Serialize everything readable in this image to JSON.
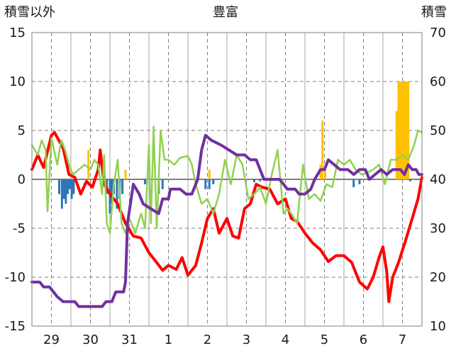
{
  "chart_data": {
    "type": "line",
    "title": "豊富",
    "ylabel_left": "積雪以外",
    "ylabel_right": "積雪",
    "x_tick_labels": [
      "29",
      "30",
      "31",
      "1",
      "2",
      "3",
      "4",
      "5",
      "6",
      "7"
    ],
    "x_range_days": [
      -0.5,
      9.5
    ],
    "ylim_left": [
      -15,
      15
    ],
    "yticks_left": [
      15,
      10,
      5,
      0,
      -5,
      -10,
      -15
    ],
    "ylim_right": [
      10,
      70
    ],
    "yticks_right": [
      70,
      60,
      50,
      40,
      30,
      20,
      10
    ],
    "grid": "dashed vertical and horizontal",
    "legend": "none",
    "colors": {
      "red_line": "#ff0000",
      "green_line": "#92d050",
      "purple_line": "#7030a0",
      "blue_bars": "#2e75b6",
      "orange_bars": "#ffc000",
      "zero_line": "#7f7f7f"
    },
    "series": [
      {
        "axis": "left",
        "style": "line",
        "color": "red",
        "points": [
          [
            -0.5,
            1.0
          ],
          [
            -0.35,
            2.5
          ],
          [
            -0.2,
            1.2
          ],
          [
            0.0,
            4.5
          ],
          [
            0.08,
            4.8
          ],
          [
            0.3,
            3.2
          ],
          [
            0.45,
            0.5
          ],
          [
            0.6,
            0.2
          ],
          [
            0.75,
            -1.5
          ],
          [
            0.9,
            -0.2
          ],
          [
            1.05,
            -0.8
          ],
          [
            1.2,
            1.0
          ],
          [
            1.25,
            3.0
          ],
          [
            1.35,
            -0.5
          ],
          [
            1.5,
            -1.5
          ],
          [
            1.7,
            -2.5
          ],
          [
            1.9,
            -4.5
          ],
          [
            2.1,
            -5.8
          ],
          [
            2.3,
            -6.0
          ],
          [
            2.5,
            -7.5
          ],
          [
            2.7,
            -8.5
          ],
          [
            2.85,
            -9.3
          ],
          [
            3.0,
            -8.8
          ],
          [
            3.2,
            -9.2
          ],
          [
            3.35,
            -8.0
          ],
          [
            3.5,
            -9.8
          ],
          [
            3.7,
            -8.8
          ],
          [
            3.85,
            -6.5
          ],
          [
            4.0,
            -4.0
          ],
          [
            4.15,
            -3.0
          ],
          [
            4.3,
            -5.5
          ],
          [
            4.5,
            -4.0
          ],
          [
            4.65,
            -5.8
          ],
          [
            4.8,
            -6.0
          ],
          [
            4.95,
            -3.0
          ],
          [
            5.1,
            -2.5
          ],
          [
            5.25,
            -0.5
          ],
          [
            5.4,
            -0.8
          ],
          [
            5.6,
            -1.0
          ],
          [
            5.8,
            -2.5
          ],
          [
            6.0,
            -2.0
          ],
          [
            6.15,
            -4.0
          ],
          [
            6.3,
            -4.3
          ],
          [
            6.5,
            -5.5
          ],
          [
            6.7,
            -6.5
          ],
          [
            6.9,
            -7.2
          ],
          [
            7.1,
            -8.4
          ],
          [
            7.3,
            -7.8
          ],
          [
            7.5,
            -7.8
          ],
          [
            7.7,
            -8.5
          ],
          [
            7.9,
            -10.5
          ],
          [
            8.1,
            -11.2
          ],
          [
            8.25,
            -10.0
          ],
          [
            8.4,
            -8.0
          ],
          [
            8.5,
            -6.9
          ],
          [
            8.6,
            -9.5
          ],
          [
            8.65,
            -12.5
          ],
          [
            8.75,
            -10.0
          ],
          [
            8.9,
            -8.5
          ],
          [
            9.1,
            -6.0
          ],
          [
            9.25,
            -4.0
          ],
          [
            9.4,
            -2.0
          ],
          [
            9.5,
            0.2
          ]
        ]
      },
      {
        "axis": "left",
        "style": "line",
        "color": "green",
        "points": [
          [
            -0.5,
            3.5
          ],
          [
            -0.35,
            2.5
          ],
          [
            -0.25,
            4.0
          ],
          [
            -0.15,
            3.0
          ],
          [
            -0.1,
            -3.3
          ],
          [
            0.0,
            4.2
          ],
          [
            0.15,
            1.5
          ],
          [
            0.25,
            4.0
          ],
          [
            0.35,
            3.0
          ],
          [
            0.45,
            1.5
          ],
          [
            0.55,
            0.5
          ],
          [
            0.7,
            1.0
          ],
          [
            0.85,
            1.5
          ],
          [
            1.0,
            1.0
          ],
          [
            1.1,
            2.0
          ],
          [
            1.2,
            1.5
          ],
          [
            1.3,
            -1.5
          ],
          [
            1.35,
            2.5
          ],
          [
            1.42,
            -4.5
          ],
          [
            1.5,
            -5.5
          ],
          [
            1.6,
            -0.5
          ],
          [
            1.7,
            2.0
          ],
          [
            1.8,
            -4.5
          ],
          [
            1.9,
            -5.5
          ],
          [
            2.0,
            -4.0
          ],
          [
            2.15,
            -5.5
          ],
          [
            2.3,
            -3.5
          ],
          [
            2.4,
            -5.0
          ],
          [
            2.5,
            3.5
          ],
          [
            2.55,
            -4.5
          ],
          [
            2.62,
            5.4
          ],
          [
            2.7,
            -5.0
          ],
          [
            2.8,
            5.0
          ],
          [
            2.9,
            2.0
          ],
          [
            3.0,
            2.0
          ],
          [
            3.15,
            1.5
          ],
          [
            3.3,
            2.2
          ],
          [
            3.5,
            2.4
          ],
          [
            3.6,
            1.5
          ],
          [
            3.7,
            -0.5
          ],
          [
            3.85,
            -2.5
          ],
          [
            4.0,
            -2.0
          ],
          [
            4.15,
            -3.5
          ],
          [
            4.3,
            -1.5
          ],
          [
            4.45,
            2.0
          ],
          [
            4.6,
            -0.5
          ],
          [
            4.75,
            2.5
          ],
          [
            4.9,
            1.5
          ],
          [
            5.05,
            -2.0
          ],
          [
            5.2,
            -1.5
          ],
          [
            5.35,
            -0.8
          ],
          [
            5.5,
            -2.5
          ],
          [
            5.65,
            0.5
          ],
          [
            5.8,
            3.0
          ],
          [
            5.95,
            -3.5
          ],
          [
            6.05,
            -3.0
          ],
          [
            6.15,
            -3.5
          ],
          [
            6.3,
            -4.5
          ],
          [
            6.45,
            1.5
          ],
          [
            6.6,
            -2.0
          ],
          [
            6.75,
            -1.5
          ],
          [
            6.9,
            -2.2
          ],
          [
            7.05,
            -0.5
          ],
          [
            7.2,
            -0.8
          ],
          [
            7.35,
            2.0
          ],
          [
            7.5,
            1.5
          ],
          [
            7.65,
            2.0
          ],
          [
            7.8,
            1.0
          ],
          [
            7.95,
            0.5
          ],
          [
            8.1,
            0.7
          ],
          [
            8.25,
            1.0
          ],
          [
            8.4,
            1.5
          ],
          [
            8.55,
            -0.5
          ],
          [
            8.7,
            2.0
          ],
          [
            8.85,
            2.0
          ],
          [
            9.0,
            2.5
          ],
          [
            9.15,
            2.0
          ],
          [
            9.3,
            3.5
          ],
          [
            9.4,
            5.0
          ],
          [
            9.5,
            4.8
          ]
        ]
      },
      {
        "axis": "right",
        "style": "line",
        "color": "purple",
        "points": [
          [
            -0.5,
            19
          ],
          [
            -0.3,
            19
          ],
          [
            -0.2,
            18
          ],
          [
            -0.05,
            18
          ],
          [
            0.05,
            17
          ],
          [
            0.15,
            16
          ],
          [
            0.3,
            15
          ],
          [
            0.6,
            15
          ],
          [
            0.7,
            14
          ],
          [
            1.3,
            14
          ],
          [
            1.4,
            15
          ],
          [
            1.55,
            15
          ],
          [
            1.65,
            17
          ],
          [
            1.85,
            17
          ],
          [
            1.9,
            19
          ],
          [
            1.95,
            31
          ],
          [
            2.1,
            39
          ],
          [
            2.25,
            37
          ],
          [
            2.35,
            35
          ],
          [
            2.55,
            34
          ],
          [
            2.75,
            33
          ],
          [
            2.85,
            36
          ],
          [
            3.0,
            36
          ],
          [
            3.05,
            38
          ],
          [
            3.3,
            38
          ],
          [
            3.45,
            37
          ],
          [
            3.6,
            37
          ],
          [
            3.75,
            40
          ],
          [
            3.85,
            46
          ],
          [
            3.95,
            49
          ],
          [
            4.1,
            48
          ],
          [
            4.35,
            47
          ],
          [
            4.55,
            46
          ],
          [
            4.75,
            45
          ],
          [
            4.95,
            45
          ],
          [
            5.1,
            44
          ],
          [
            5.25,
            44
          ],
          [
            5.35,
            42
          ],
          [
            5.45,
            40
          ],
          [
            5.55,
            40
          ],
          [
            5.85,
            40
          ],
          [
            6.05,
            38
          ],
          [
            6.25,
            38
          ],
          [
            6.35,
            37
          ],
          [
            6.5,
            37
          ],
          [
            6.65,
            38
          ],
          [
            6.75,
            40
          ],
          [
            6.9,
            42
          ],
          [
            7.0,
            42
          ],
          [
            7.1,
            44
          ],
          [
            7.25,
            43
          ],
          [
            7.4,
            42
          ],
          [
            7.6,
            42
          ],
          [
            7.75,
            41
          ],
          [
            7.9,
            42
          ],
          [
            8.05,
            42
          ],
          [
            8.15,
            40
          ],
          [
            8.3,
            41
          ],
          [
            8.45,
            42
          ],
          [
            8.6,
            41
          ],
          [
            8.75,
            42
          ],
          [
            8.95,
            42
          ],
          [
            9.05,
            41
          ],
          [
            9.15,
            43
          ],
          [
            9.25,
            42
          ],
          [
            9.35,
            42
          ],
          [
            9.42,
            41
          ],
          [
            9.5,
            41
          ]
        ]
      },
      {
        "axis": "left",
        "style": "bar",
        "color": "blue",
        "points": [
          [
            0.2,
            -1.5
          ],
          [
            0.27,
            -3.0
          ],
          [
            0.32,
            -2.0
          ],
          [
            0.37,
            -2.5
          ],
          [
            0.42,
            -1.5
          ],
          [
            0.47,
            -1.0
          ],
          [
            0.52,
            -2.0
          ],
          [
            0.57,
            -1.5
          ],
          [
            1.42,
            -1.5
          ],
          [
            1.5,
            -3.5
          ],
          [
            1.55,
            -2.5
          ],
          [
            1.6,
            -1.5
          ],
          [
            1.68,
            -3.0
          ],
          [
            1.75,
            -2.0
          ],
          [
            1.82,
            -1.5
          ],
          [
            2.4,
            -0.5
          ],
          [
            2.75,
            -1.5
          ],
          [
            2.85,
            -1.0
          ],
          [
            3.95,
            -1.0
          ],
          [
            4.05,
            -1.0
          ],
          [
            4.15,
            -0.5
          ],
          [
            5.2,
            -0.3
          ],
          [
            5.35,
            -0.2
          ],
          [
            7.75,
            -0.8
          ],
          [
            7.9,
            -0.5
          ],
          [
            9.2,
            -0.2
          ]
        ]
      },
      {
        "axis": "left",
        "style": "bar",
        "color": "orange",
        "points": [
          [
            0.95,
            3.0
          ],
          [
            1.9,
            1.0
          ],
          [
            4.05,
            1.0
          ],
          [
            6.9,
            1.5
          ],
          [
            6.95,
            6.0
          ],
          [
            7.02,
            1.0
          ],
          [
            8.85,
            7.0
          ],
          [
            8.9,
            10.0
          ],
          [
            8.95,
            10.0
          ],
          [
            9.0,
            10.0
          ],
          [
            9.05,
            10.0
          ],
          [
            9.1,
            10.0
          ],
          [
            9.15,
            10.0
          ]
        ]
      }
    ]
  }
}
